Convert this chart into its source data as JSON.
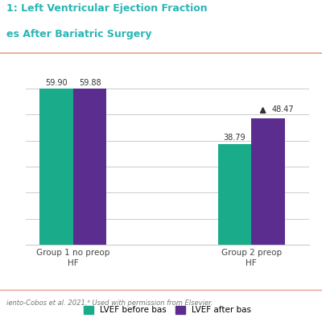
{
  "groups": [
    "Group 1 no preop\nHF",
    "Group 2 preop\nHF"
  ],
  "before_values": [
    59.9,
    38.79
  ],
  "after_values": [
    59.88,
    48.47
  ],
  "before_color": "#1aab8a",
  "after_color": "#5b2d8e",
  "bar_width": 0.32,
  "group_positions": [
    1.0,
    2.7
  ],
  "ylim": [
    0,
    68
  ],
  "yticks": [
    0,
    10,
    20,
    30,
    40,
    50,
    60
  ],
  "title_line1": "1: Left Ventricular Ejection Fraction",
  "title_line2": "es After Bariatric Surgery",
  "title_color": "#2ab5b5",
  "legend_before": "LVEF before bas",
  "legend_after": "LVEF after bas",
  "footer_text": "iento-Cobos et al. 2021.⁶ Used with permission from Elsevier.",
  "top_border_color": "#e8a090",
  "bottom_border_color": "#e8a090",
  "background_color": "#ffffff",
  "grid_color": "#cccccc",
  "label_color": "#555555",
  "arrow_color": "#333333"
}
